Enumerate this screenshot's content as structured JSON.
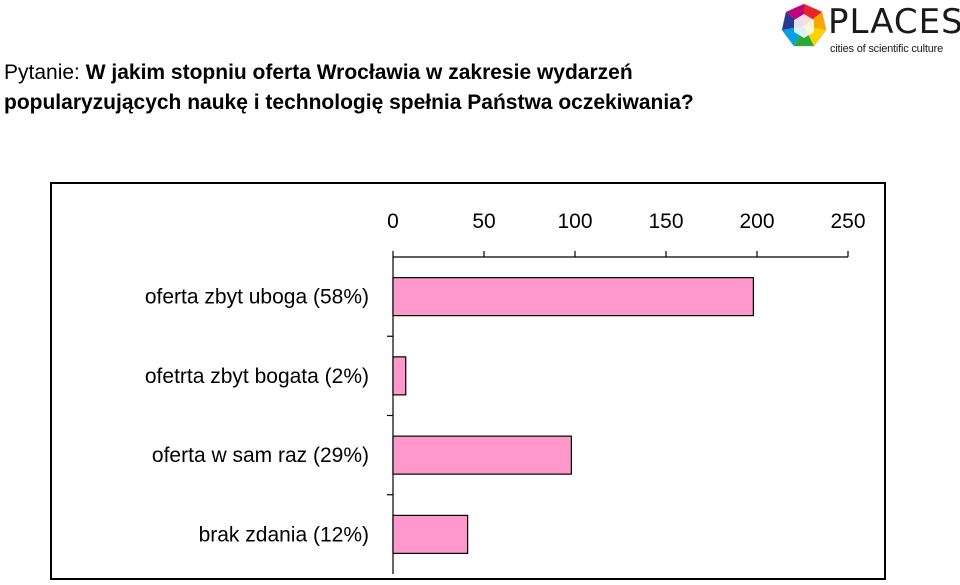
{
  "question": {
    "label": "Pytanie: ",
    "text": "W jakim stopniu oferta Wrocławia w zakresie wydarzeń popularyzujących naukę i technologię spełnia Państwa oczekiwania?"
  },
  "logo": {
    "word": "PLACES",
    "tagline": "cities of scientific culture",
    "icon": "places-polygon-logo-icon"
  },
  "colors": {
    "bar_fill": "#ff99cc",
    "bar_stroke": "#000000"
  },
  "chart_data": {
    "type": "bar",
    "orientation": "horizontal",
    "categories": [
      "oferta zbyt uboga (58%)",
      "ofetrta zbyt bogata (2%)",
      "oferta w sam raz (29%)",
      "brak zdania (12%)"
    ],
    "values": [
      198,
      7,
      98,
      41
    ],
    "xlim": [
      0,
      250
    ],
    "xticks": [
      "0",
      "50",
      "100",
      "150",
      "200",
      "250"
    ],
    "x_axis_position": "top",
    "title": "",
    "xlabel": "",
    "ylabel": "",
    "grid": false,
    "legend": false
  }
}
